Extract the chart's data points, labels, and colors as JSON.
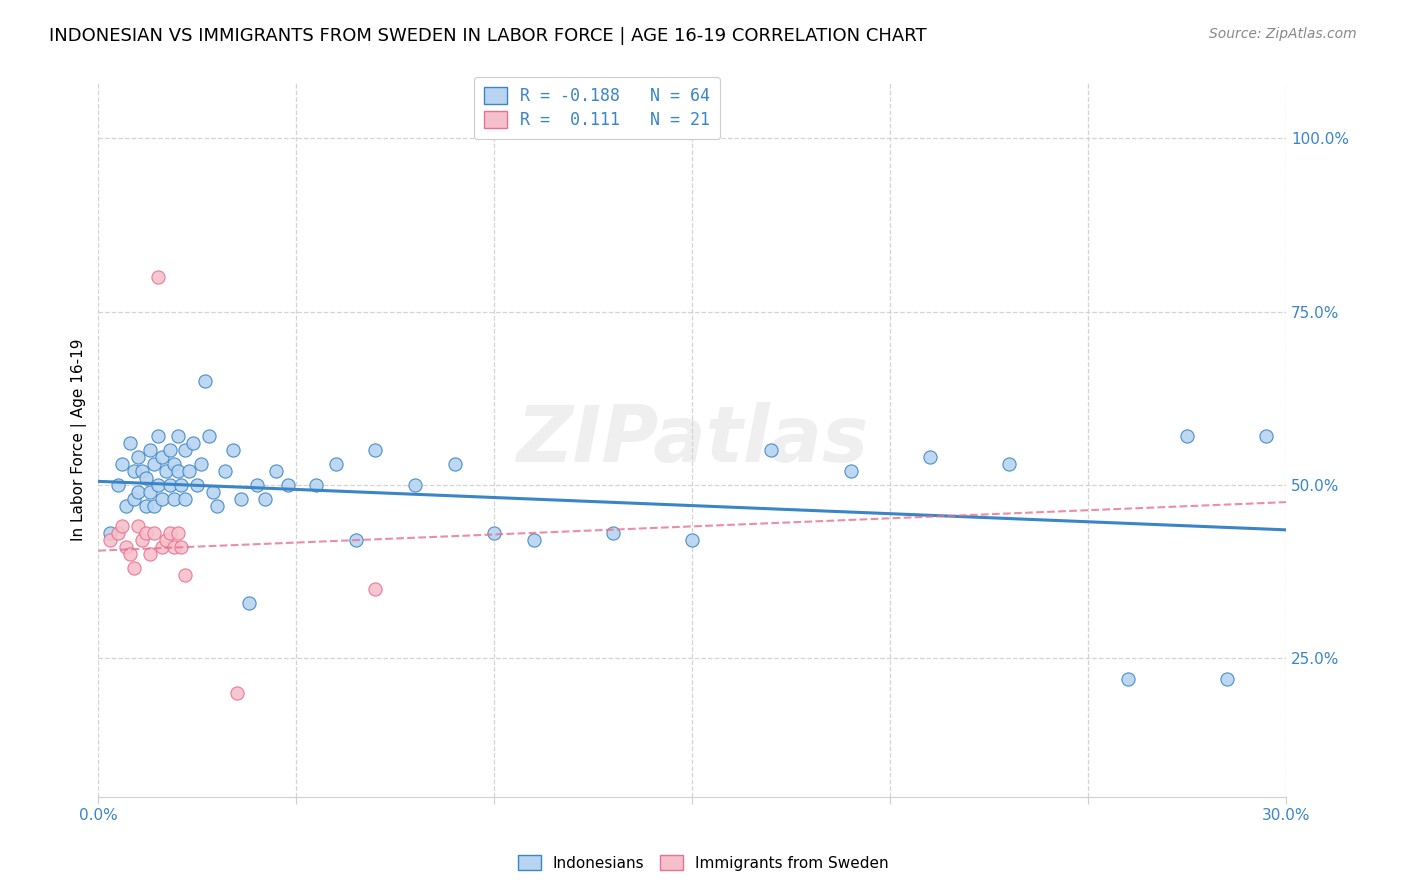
{
  "title": "INDONESIAN VS IMMIGRANTS FROM SWEDEN IN LABOR FORCE | AGE 16-19 CORRELATION CHART",
  "source": "Source: ZipAtlas.com",
  "ylabel": "In Labor Force | Age 16-19",
  "xlim": [
    0.0,
    0.3
  ],
  "ylim": [
    0.05,
    1.08
  ],
  "yticks": [
    0.25,
    0.5,
    0.75,
    1.0
  ],
  "ytick_labels": [
    "25.0%",
    "50.0%",
    "75.0%",
    "100.0%"
  ],
  "xticks": [
    0.0,
    0.05,
    0.1,
    0.15,
    0.2,
    0.25,
    0.3
  ],
  "xtick_labels": [
    "0.0%",
    "",
    "",
    "",
    "",
    "",
    "30.0%"
  ],
  "legend_entries": [
    {
      "label": "R = -0.188   N = 64"
    },
    {
      "label": "R =  0.111   N = 21"
    }
  ],
  "blue_scatter_x": [
    0.003,
    0.005,
    0.006,
    0.007,
    0.008,
    0.009,
    0.009,
    0.01,
    0.01,
    0.011,
    0.012,
    0.012,
    0.013,
    0.013,
    0.014,
    0.014,
    0.015,
    0.015,
    0.016,
    0.016,
    0.017,
    0.018,
    0.018,
    0.019,
    0.019,
    0.02,
    0.02,
    0.021,
    0.022,
    0.022,
    0.023,
    0.024,
    0.025,
    0.026,
    0.027,
    0.028,
    0.029,
    0.03,
    0.032,
    0.034,
    0.036,
    0.038,
    0.04,
    0.042,
    0.045,
    0.048,
    0.055,
    0.06,
    0.065,
    0.07,
    0.08,
    0.09,
    0.1,
    0.11,
    0.13,
    0.15,
    0.17,
    0.19,
    0.21,
    0.23,
    0.26,
    0.275,
    0.285,
    0.295
  ],
  "blue_scatter_y": [
    0.43,
    0.5,
    0.53,
    0.47,
    0.56,
    0.52,
    0.48,
    0.54,
    0.49,
    0.52,
    0.47,
    0.51,
    0.55,
    0.49,
    0.53,
    0.47,
    0.57,
    0.5,
    0.54,
    0.48,
    0.52,
    0.55,
    0.5,
    0.48,
    0.53,
    0.57,
    0.52,
    0.5,
    0.55,
    0.48,
    0.52,
    0.56,
    0.5,
    0.53,
    0.65,
    0.57,
    0.49,
    0.47,
    0.52,
    0.55,
    0.48,
    0.33,
    0.5,
    0.48,
    0.52,
    0.5,
    0.5,
    0.53,
    0.42,
    0.55,
    0.5,
    0.53,
    0.43,
    0.42,
    0.43,
    0.42,
    0.55,
    0.52,
    0.54,
    0.53,
    0.22,
    0.57,
    0.22,
    0.57
  ],
  "pink_scatter_x": [
    0.003,
    0.005,
    0.006,
    0.007,
    0.008,
    0.009,
    0.01,
    0.011,
    0.012,
    0.013,
    0.014,
    0.015,
    0.016,
    0.017,
    0.018,
    0.019,
    0.02,
    0.021,
    0.022,
    0.035,
    0.07
  ],
  "pink_scatter_y": [
    0.42,
    0.43,
    0.44,
    0.41,
    0.4,
    0.38,
    0.44,
    0.42,
    0.43,
    0.4,
    0.43,
    0.8,
    0.41,
    0.42,
    0.43,
    0.41,
    0.43,
    0.41,
    0.37,
    0.2,
    0.35
  ],
  "blue_line_x": [
    0.0,
    0.3
  ],
  "blue_line_y": [
    0.505,
    0.435
  ],
  "pink_line_x": [
    0.0,
    0.3
  ],
  "pink_line_y": [
    0.405,
    0.475
  ],
  "blue_color": "#3a85c8",
  "pink_color": "#e87090",
  "blue_fill": "#b8d4f0",
  "pink_fill": "#f5c0cc",
  "grid_color": "#d0d0d0",
  "axis_color": "#3a85c8",
  "watermark": "ZIPatlas",
  "title_fontsize": 13,
  "axis_label_fontsize": 11,
  "tick_fontsize": 11,
  "source_fontsize": 10
}
